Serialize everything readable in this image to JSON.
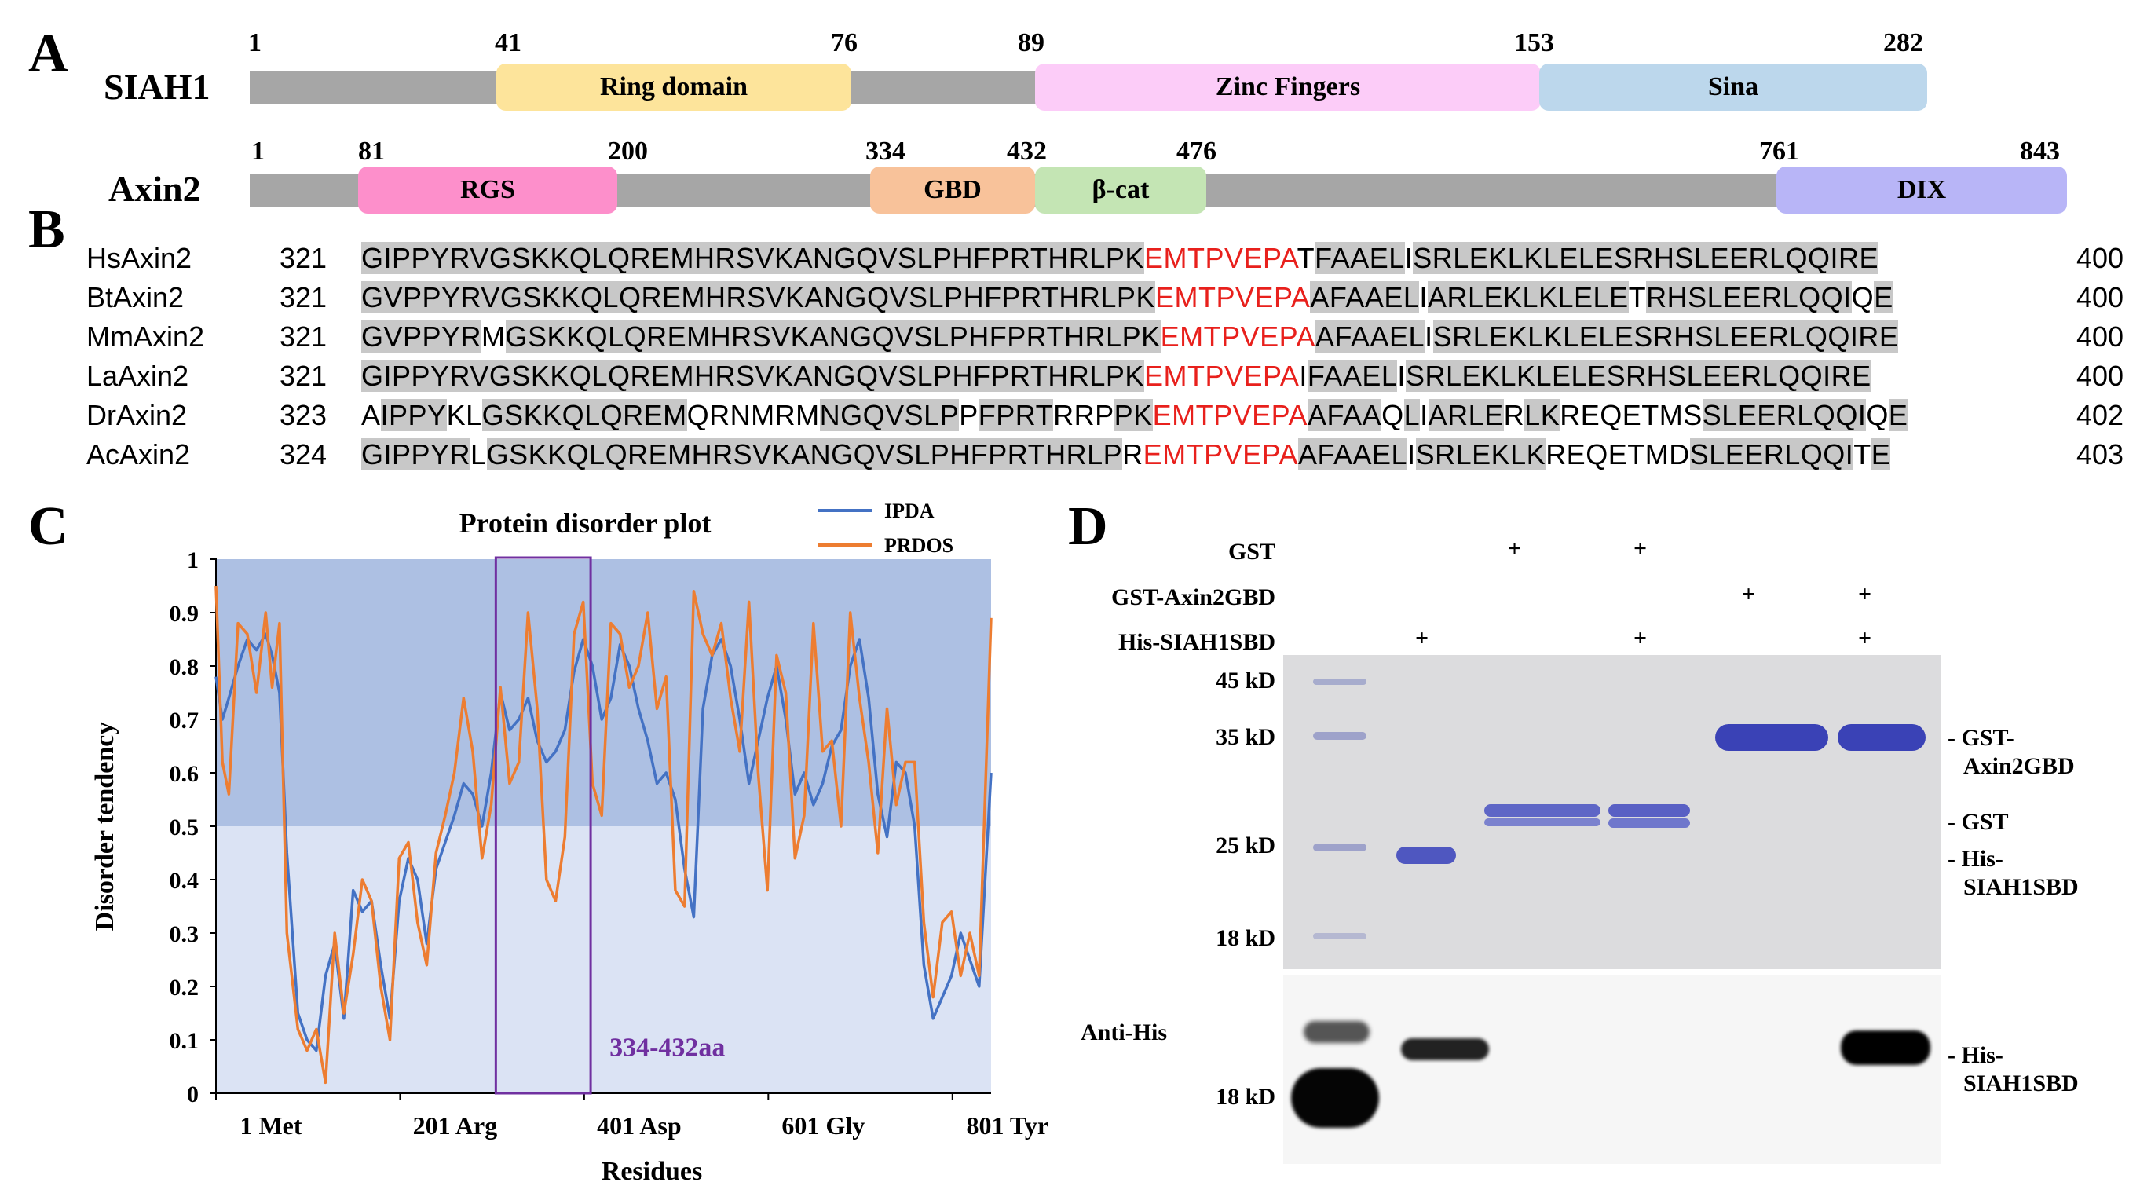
{
  "panels": {
    "A": "A",
    "B": "B",
    "C": "C",
    "D": "D"
  },
  "panel_a": {
    "siah1": {
      "name": "SIAH1",
      "positions": [
        "1",
        "41",
        "76",
        "89",
        "153",
        "282"
      ],
      "domains": [
        {
          "label": "Ring domain",
          "color": "#fde49b"
        },
        {
          "label": "Zinc  Fingers",
          "color": "#fcccf8"
        },
        {
          "label": "Sina",
          "color": "#bcd7ec"
        }
      ]
    },
    "axin2": {
      "name": "Axin2",
      "positions": [
        "1",
        "81",
        "200",
        "334",
        "432",
        "476",
        "761",
        "843"
      ],
      "domains": [
        {
          "label": "RGS",
          "color": "#fd8fcb"
        },
        {
          "label": "GBD",
          "color": "#f8c29a"
        },
        {
          "label": "β-cat",
          "color": "#c4e5b4"
        },
        {
          "label": "DIX",
          "color": "#b8b5f7"
        }
      ]
    }
  },
  "panel_b": {
    "rows": [
      {
        "species": "HsAxin2",
        "start": "321",
        "end": "400",
        "segs": [
          [
            "GIPPYRVGSKKQLQREMHRSVKANGQVSLPHFPRTHRLPK",
            "h"
          ],
          [
            "EMTPVEPA",
            "r"
          ],
          [
            "T",
            "n"
          ],
          [
            "FAAEL",
            "h"
          ],
          [
            "I",
            "n"
          ],
          [
            "SRLEKLKLELESRHSLEERLQQIRE",
            "h"
          ]
        ]
      },
      {
        "species": "BtAxin2",
        "start": "321",
        "end": "400",
        "segs": [
          [
            "GV",
            "h"
          ],
          [
            "PPYRVGSKKQLQREMHRSVKANGQVSLPHFPRTHRLPK",
            "h"
          ],
          [
            "EMTPVEPA",
            "r"
          ],
          [
            "AFAAEL",
            "h"
          ],
          [
            "I",
            "n"
          ],
          [
            "ARLEKLKLELE",
            "h"
          ],
          [
            "T",
            "n"
          ],
          [
            "RHSLEERLQQI",
            "h"
          ],
          [
            "Q",
            "n"
          ],
          [
            "E",
            "h"
          ]
        ]
      },
      {
        "species": "MmAxin2",
        "start": "321",
        "end": "400",
        "segs": [
          [
            "GVPPYR",
            "h"
          ],
          [
            "M",
            "n"
          ],
          [
            "GSKKQLQREMHRSVKANGQVSLPHFPRTHRLPK",
            "h"
          ],
          [
            "EMTPVEPA",
            "r"
          ],
          [
            "AFAAEL",
            "h"
          ],
          [
            "I",
            "n"
          ],
          [
            "SRLEKLKLELESRHSLEERLQQIRE",
            "h"
          ]
        ]
      },
      {
        "species": "LaAxin2",
        "start": "321",
        "end": "400",
        "segs": [
          [
            "GIPPYRVGSKKQLQREMHRSVKANGQVSLPHFPRTHRLPK",
            "h"
          ],
          [
            "EMTPVEPA",
            "r"
          ],
          [
            "I",
            "n"
          ],
          [
            "FAAEL",
            "h"
          ],
          [
            "I",
            "n"
          ],
          [
            "SRLEKLKLELESRHSLEERLQQIRE",
            "h"
          ]
        ]
      },
      {
        "species": "DrAxin2",
        "start": "323",
        "end": "402",
        "segs": [
          [
            "A",
            "n"
          ],
          [
            "IPPY",
            "h"
          ],
          [
            "KL",
            "n"
          ],
          [
            "GSKKQLQREM",
            "h"
          ],
          [
            "QRNMRM",
            "n"
          ],
          [
            "NGQVSLP",
            "h"
          ],
          [
            "P",
            "n"
          ],
          [
            "FPRT",
            "h"
          ],
          [
            "RRP",
            "n"
          ],
          [
            "PK",
            "h"
          ],
          [
            "EMTPVEPA",
            "r"
          ],
          [
            "AFAA",
            "h"
          ],
          [
            "Q",
            "n"
          ],
          [
            "L",
            "h"
          ],
          [
            "I",
            "n"
          ],
          [
            "ARLE",
            "h"
          ],
          [
            "R",
            "n"
          ],
          [
            "LK",
            "h"
          ],
          [
            "REQETMS",
            "n"
          ],
          [
            "SLEERLQQI",
            "h"
          ],
          [
            "Q",
            "n"
          ],
          [
            "E",
            "h"
          ]
        ]
      },
      {
        "species": "AcAxin2",
        "start": "324",
        "end": "403",
        "segs": [
          [
            "GIPPYR",
            "h"
          ],
          [
            "L",
            "n"
          ],
          [
            "GSKKQLQREMHRSVKANGQVSLPHFPRTHRLP",
            "h"
          ],
          [
            "R",
            "n"
          ],
          [
            "EMTPVEPA",
            "r"
          ],
          [
            "AFAAEL",
            "h"
          ],
          [
            "I",
            "n"
          ],
          [
            "SRLEKLK",
            "h"
          ],
          [
            "REQETMD",
            "n"
          ],
          [
            "SLEERLQQI",
            "h"
          ],
          [
            "T",
            "n"
          ],
          [
            "E",
            "h"
          ]
        ]
      }
    ]
  },
  "panel_c": {
    "box_label": "334-432aa",
    "chart_data": {
      "type": "line",
      "title": "Protein disorder plot",
      "xlabel": "Residues",
      "ylabel": "Disorder tendency",
      "xlim": [
        1,
        843
      ],
      "ylim": [
        0,
        1
      ],
      "y_ticks": [
        "0",
        "0.1",
        "0.2",
        "0.3",
        "0.4",
        "0.5",
        "0.6",
        "0.7",
        "0.8",
        "0.9",
        "1"
      ],
      "x_ticks": [
        {
          "x": 1,
          "label": "1 Met"
        },
        {
          "x": 201,
          "label": "201 Arg"
        },
        {
          "x": 401,
          "label": "401 Asp"
        },
        {
          "x": 601,
          "label": "601 Gly"
        },
        {
          "x": 801,
          "label": "801 Tyr"
        }
      ],
      "threshold": 0.5,
      "highlight_range": [
        305,
        408
      ],
      "legend_position": "top-right",
      "series": [
        {
          "name": "IPDA",
          "color": "#4472c4",
          "x": [
            1,
            8,
            15,
            25,
            35,
            45,
            55,
            62,
            70,
            78,
            90,
            100,
            110,
            120,
            130,
            140,
            150,
            160,
            170,
            180,
            190,
            200,
            210,
            220,
            230,
            240,
            250,
            260,
            270,
            280,
            290,
            300,
            310,
            320,
            330,
            340,
            350,
            360,
            370,
            380,
            390,
            400,
            410,
            420,
            430,
            440,
            450,
            460,
            470,
            480,
            490,
            500,
            510,
            520,
            530,
            540,
            550,
            560,
            570,
            580,
            590,
            600,
            610,
            620,
            630,
            640,
            650,
            660,
            670,
            680,
            690,
            700,
            710,
            720,
            730,
            740,
            750,
            760,
            770,
            780,
            790,
            800,
            810,
            820,
            830,
            843
          ],
          "y": [
            0.78,
            0.7,
            0.74,
            0.8,
            0.85,
            0.83,
            0.86,
            0.82,
            0.75,
            0.45,
            0.15,
            0.1,
            0.08,
            0.22,
            0.28,
            0.14,
            0.38,
            0.34,
            0.36,
            0.24,
            0.14,
            0.36,
            0.44,
            0.4,
            0.28,
            0.42,
            0.47,
            0.52,
            0.58,
            0.56,
            0.5,
            0.6,
            0.75,
            0.68,
            0.7,
            0.74,
            0.66,
            0.62,
            0.64,
            0.68,
            0.79,
            0.85,
            0.8,
            0.7,
            0.74,
            0.84,
            0.8,
            0.72,
            0.66,
            0.58,
            0.6,
            0.55,
            0.42,
            0.33,
            0.72,
            0.82,
            0.85,
            0.8,
            0.7,
            0.58,
            0.66,
            0.74,
            0.8,
            0.7,
            0.56,
            0.6,
            0.54,
            0.58,
            0.65,
            0.68,
            0.8,
            0.85,
            0.74,
            0.56,
            0.48,
            0.62,
            0.6,
            0.5,
            0.24,
            0.14,
            0.18,
            0.22,
            0.3,
            0.25,
            0.2,
            0.6
          ]
        },
        {
          "name": "PRDOS",
          "color": "#ed7d31",
          "x": [
            1,
            8,
            15,
            25,
            35,
            45,
            55,
            62,
            70,
            78,
            90,
            100,
            110,
            120,
            130,
            140,
            150,
            160,
            170,
            180,
            190,
            200,
            210,
            220,
            230,
            240,
            250,
            260,
            270,
            280,
            290,
            300,
            310,
            320,
            330,
            340,
            350,
            360,
            370,
            380,
            390,
            400,
            410,
            420,
            430,
            440,
            450,
            460,
            470,
            480,
            490,
            500,
            510,
            520,
            530,
            540,
            550,
            560,
            570,
            580,
            590,
            600,
            610,
            620,
            630,
            640,
            650,
            660,
            670,
            680,
            690,
            700,
            710,
            720,
            730,
            740,
            750,
            760,
            770,
            780,
            790,
            800,
            810,
            820,
            830,
            843
          ],
          "y": [
            0.95,
            0.62,
            0.56,
            0.88,
            0.86,
            0.75,
            0.9,
            0.76,
            0.88,
            0.3,
            0.12,
            0.08,
            0.12,
            0.02,
            0.3,
            0.15,
            0.26,
            0.4,
            0.36,
            0.2,
            0.1,
            0.44,
            0.47,
            0.32,
            0.24,
            0.45,
            0.52,
            0.6,
            0.74,
            0.64,
            0.44,
            0.54,
            0.76,
            0.58,
            0.62,
            0.9,
            0.72,
            0.4,
            0.36,
            0.48,
            0.86,
            0.92,
            0.58,
            0.52,
            0.88,
            0.86,
            0.76,
            0.8,
            0.9,
            0.72,
            0.78,
            0.38,
            0.35,
            0.94,
            0.86,
            0.82,
            0.88,
            0.74,
            0.64,
            0.92,
            0.6,
            0.38,
            0.82,
            0.75,
            0.44,
            0.52,
            0.88,
            0.64,
            0.66,
            0.5,
            0.9,
            0.74,
            0.62,
            0.45,
            0.72,
            0.54,
            0.62,
            0.62,
            0.32,
            0.18,
            0.32,
            0.34,
            0.22,
            0.3,
            0.22,
            0.89
          ]
        }
      ]
    }
  },
  "panel_d": {
    "row_labels": [
      "GST",
      "GST-Axin2GBD",
      "His-SIAH1SBD"
    ],
    "plus": "+",
    "marker_labels_top": [
      "45 kD",
      "35 kD",
      "25 kD",
      "18 kD"
    ],
    "marker_label_bottom": "18 kD",
    "anti_his": "Anti-His",
    "right_labels_top": [
      {
        "l1": "- GST-",
        "l2": "Axin2GBD"
      },
      {
        "l1": "- GST",
        "l2": ""
      },
      {
        "l1": "- His-",
        "l2": "SIAH1SBD"
      }
    ],
    "right_label_bottom": {
      "l1": "- His-",
      "l2": "SIAH1SBD"
    },
    "band_color": "#3f46b8"
  }
}
